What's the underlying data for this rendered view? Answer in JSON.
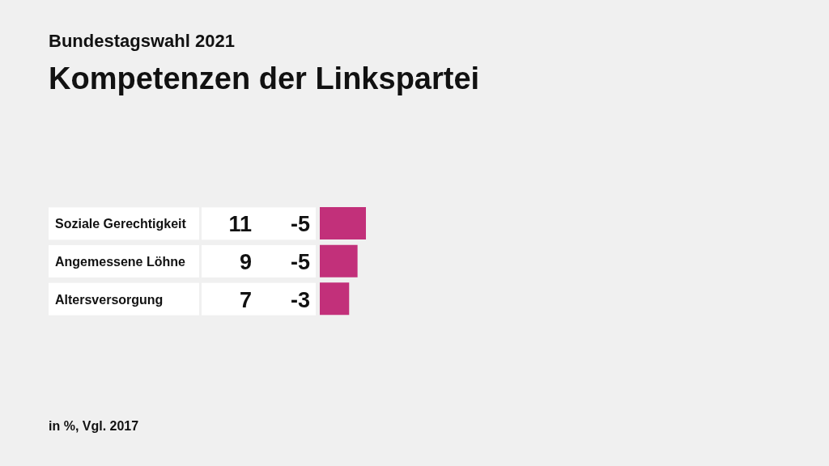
{
  "chart_data": {
    "type": "bar",
    "orientation": "horizontal",
    "subtitle": "Bundestagswahl 2021",
    "title": "Kompetenzen der Linkspartei",
    "categories": [
      "Soziale Gerechtigkeit",
      "Angemessene Löhne",
      "Altersversorgung"
    ],
    "values": [
      11,
      9,
      7
    ],
    "color": "#c2307a",
    "data_labels": true,
    "annotations": [
      "-5",
      "-5",
      "-3",
      "in %, Vgl. 2017"
    ]
  }
}
